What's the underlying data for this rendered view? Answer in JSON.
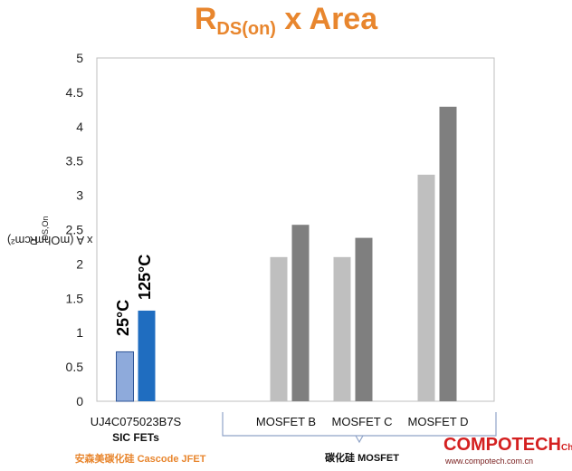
{
  "title": {
    "main": "R",
    "sub": "DS(on)",
    "rest": " x Area"
  },
  "chart_data": {
    "type": "bar",
    "ylabel": {
      "prefix": "R",
      "sub": "DS,On",
      "suffix": " x A (mOhm-cm²)"
    },
    "ylim": [
      0,
      5
    ],
    "yticks": [
      "0",
      "0.5",
      "1",
      "1.5",
      "2",
      "2.5",
      "3",
      "3.5",
      "4",
      "4.5",
      "5"
    ],
    "grid": false,
    "categories": [
      "UJ4C075023B7S",
      "MOSFET B",
      "MOSFET C",
      "MOSFET D"
    ],
    "category_sublabels": [
      "SIC FETs",
      "",
      "",
      ""
    ],
    "series": [
      {
        "name": "25°C",
        "values": [
          0.72,
          2.1,
          2.1,
          3.3
        ],
        "colors": [
          "#8eaadb",
          "#bfbfbf",
          "#bfbfbf",
          "#bfbfbf"
        ]
      },
      {
        "name": "125°C",
        "values": [
          1.32,
          2.57,
          2.38,
          4.29
        ],
        "colors": [
          "#1f6dc0",
          "#7f7f7f",
          "#7f7f7f",
          "#7f7f7f"
        ]
      }
    ]
  },
  "footer": {
    "left_group_label": "安森美碳化硅 Cascode JFET",
    "right_group_label": "碳化硅 MOSFET"
  },
  "watermark": {
    "main": "COMPOTECH",
    "sup": "China",
    "url": "www.compotech.com.cn"
  }
}
